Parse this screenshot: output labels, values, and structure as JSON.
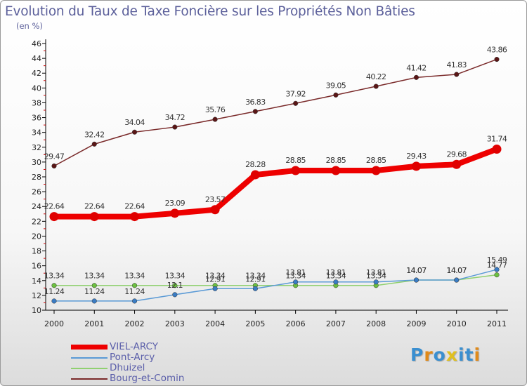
{
  "chart_data": {
    "type": "line",
    "title": "Evolution du Taux de Taxe Foncière sur les Propriétés Non Bâties",
    "subtitle": "(en %)",
    "xlabel": "",
    "ylabel": "",
    "categories": [
      "2000",
      "2001",
      "2002",
      "2003",
      "2004",
      "2005",
      "2006",
      "2007",
      "2008",
      "2009",
      "2010",
      "2011"
    ],
    "ylim": [
      10,
      46
    ],
    "yticks": [
      10,
      12,
      14,
      16,
      18,
      20,
      22,
      24,
      26,
      28,
      30,
      32,
      34,
      36,
      38,
      40,
      42,
      44,
      46
    ],
    "grid": false,
    "legend_position": "bottom-left",
    "series": [
      {
        "name": "Bourg-et-Comin",
        "color": "#7a2a2a",
        "dot": "#5a1616",
        "values": [
          29.47,
          32.42,
          34.04,
          34.72,
          35.76,
          36.83,
          37.92,
          39.05,
          40.22,
          41.42,
          41.83,
          43.86
        ],
        "labels": [
          "29.47",
          "32.42",
          "34.04",
          "34.72",
          "35.76",
          "36.83",
          "37.92",
          "39.05",
          "40.22",
          "41.42",
          "41.83",
          "43.86"
        ]
      },
      {
        "name": "Dhuizel",
        "color": "#90d070",
        "dot": "#6cc040",
        "values": [
          13.34,
          13.34,
          13.34,
          13.34,
          13.34,
          13.34,
          13.34,
          13.34,
          13.34,
          14.07,
          14.07,
          14.77
        ],
        "labels": [
          "13.34",
          "13.34",
          "13.34",
          "13.34",
          "13.34",
          "13.34",
          "13.34",
          "13.34",
          "13.34",
          "14.07",
          "14.07",
          "14.77"
        ]
      },
      {
        "name": "Pont-Arcy",
        "color": "#5a9ad6",
        "dot": "#3a7cc4",
        "values": [
          11.24,
          11.24,
          11.24,
          12.1,
          12.91,
          12.91,
          13.81,
          13.81,
          13.81,
          14.07,
          14.07,
          15.49
        ],
        "labels": [
          "11.24",
          "11.24",
          "11.24",
          "12.1",
          "12.91",
          "12.91",
          "13.81",
          "13.81",
          "13.81",
          "14.07",
          "14.07",
          "15.49"
        ]
      },
      {
        "name": "VIEL-ARCY",
        "color": "#ee0000",
        "dot": "#e00000",
        "values": [
          22.64,
          22.64,
          22.64,
          23.09,
          23.57,
          28.28,
          28.85,
          28.85,
          28.85,
          29.43,
          29.68,
          31.74
        ],
        "labels": [
          "22.64",
          "22.64",
          "22.64",
          "23.09",
          "23.57",
          "28.28",
          "28.85",
          "28.85",
          "28.85",
          "29.43",
          "29.68",
          "31.74"
        ]
      }
    ],
    "legend": [
      "VIEL-ARCY",
      "Pont-Arcy",
      "Dhuizel",
      "Bourg-et-Comin"
    ]
  },
  "logo": {
    "text": "Proxiti",
    "letters": [
      "P",
      "r",
      "o",
      "x",
      "i",
      "t",
      "i"
    ],
    "colors": [
      "#3a8fd0",
      "#e08a1a",
      "#3a8fd0",
      "#e0c020",
      "#3a8fd0",
      "#3a8fd0",
      "#e08a1a"
    ]
  }
}
